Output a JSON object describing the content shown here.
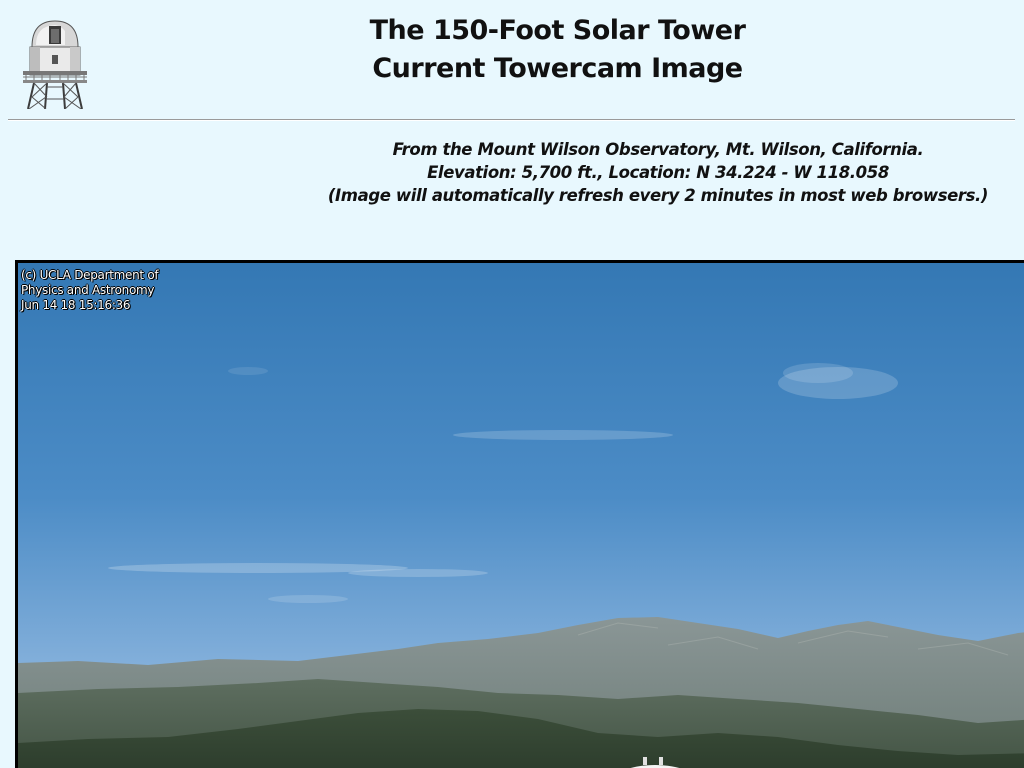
{
  "header": {
    "logo_icon": "solar-tower-icon",
    "title_line1": "The 150-Foot Solar Tower",
    "title_line2": "Current Towercam Image"
  },
  "info": {
    "line1": "From the Mount Wilson Observatory, Mt. Wilson, California.",
    "line2": "Elevation: 5,700 ft., Location: N 34.224 - W 118.058",
    "line3": "(Image will automatically refresh every 2 minutes in most web browsers.)"
  },
  "camera": {
    "caption_line1": "(c) UCLA Department of",
    "caption_line2": "Physics and Astronomy",
    "caption_line3": "Jun 14 18 15:16:36"
  },
  "colors": {
    "background": "#e8f8fe",
    "sky_top": "#3478b4",
    "sky_horizon": "#a4c6e4",
    "mountains": "#6f7f7a"
  }
}
